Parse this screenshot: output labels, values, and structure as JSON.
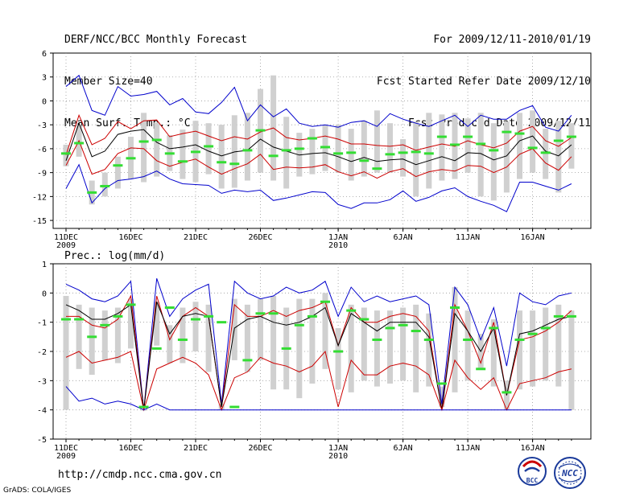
{
  "header": {
    "title": "DERF/NCC/BCC Monthly Forecast",
    "member_size": "Member Size=40",
    "variable": "Mean Surf. Temp.: °C",
    "forecast_period": "For 2009/12/11-2010/01/19",
    "started_refer": "Fcst Started Refer Date 2009/12/10",
    "produced": "Fcst Produced Date 2009/12/11"
  },
  "footer": {
    "url": "http://cmdp.ncc.cma.gov.cn",
    "credit": "GrADS: COLA/IGES"
  },
  "logos": {
    "bcc": "BCC",
    "ncc": "NCC"
  },
  "colors": {
    "envelope": "#0000cc",
    "spread": "#cc0000",
    "mean": "#000000",
    "box": "#d0d0d0",
    "marker": "#33dd33"
  },
  "x_ticks": [
    {
      "day": 0,
      "label": "11DEC",
      "sub": "2009"
    },
    {
      "day": 5,
      "label": "16DEC",
      "sub": ""
    },
    {
      "day": 10,
      "label": "21DEC",
      "sub": ""
    },
    {
      "day": 15,
      "label": "26DEC",
      "sub": ""
    },
    {
      "day": 21,
      "label": "1JAN",
      "sub": "2010"
    },
    {
      "day": 26,
      "label": "6JAN",
      "sub": ""
    },
    {
      "day": 31,
      "label": "11JAN",
      "sub": ""
    },
    {
      "day": 36,
      "label": "16JAN",
      "sub": ""
    }
  ],
  "chart_data": [
    {
      "type": "line",
      "title": "Mean Surf. Temp.: °C",
      "xlabel": "",
      "ylabel": "°C",
      "x_days": [
        0,
        1,
        2,
        3,
        4,
        5,
        6,
        7,
        8,
        9,
        10,
        11,
        12,
        13,
        14,
        15,
        16,
        17,
        18,
        19,
        20,
        21,
        22,
        23,
        24,
        25,
        26,
        27,
        28,
        29,
        30,
        31,
        32,
        33,
        34,
        35,
        36,
        37,
        38,
        39
      ],
      "ylim": [
        -16,
        6
      ],
      "yticks": [
        6,
        3,
        0,
        -3,
        -6,
        -9,
        -12,
        -15
      ],
      "grid": true,
      "series": [
        {
          "name": "max",
          "color": "#0000cc",
          "values": [
            1.8,
            3.2,
            -1.2,
            -1.8,
            1.8,
            0.6,
            0.8,
            1.2,
            -0.5,
            0.3,
            -1.4,
            -1.6,
            -0.2,
            1.7,
            -2.5,
            -0.5,
            -2.0,
            -1.0,
            -2.8,
            -3.2,
            -3.0,
            -3.3,
            -2.7,
            -2.5,
            -3.2,
            -1.6,
            -2.3,
            -2.8,
            -3.2,
            -2.5,
            -1.8,
            -3.2,
            -1.8,
            -2.3,
            -2.3,
            -1.2,
            -0.6,
            -3.3,
            -3.8,
            -1.8
          ]
        },
        {
          "name": "upper",
          "color": "#cc0000",
          "values": [
            -6.8,
            -1.8,
            -5.5,
            -4.7,
            -2.6,
            -3.5,
            -2.5,
            -2.4,
            -4.5,
            -4.1,
            -3.8,
            -4.4,
            -5.0,
            -4.5,
            -4.8,
            -3.9,
            -3.4,
            -4.6,
            -4.9,
            -4.7,
            -4.4,
            -4.8,
            -5.4,
            -5.4,
            -5.6,
            -5.7,
            -5.5,
            -6.2,
            -5.8,
            -5.4,
            -5.7,
            -5.0,
            -5.5,
            -5.9,
            -5.3,
            -3.8,
            -3.2,
            -5.0,
            -5.7,
            -4.6
          ]
        },
        {
          "name": "mean",
          "color": "#000000",
          "values": [
            -7.5,
            -2.8,
            -7.0,
            -6.3,
            -4.2,
            -3.8,
            -3.6,
            -5.2,
            -6.0,
            -5.8,
            -5.5,
            -6.3,
            -6.9,
            -6.4,
            -6.2,
            -4.8,
            -5.8,
            -6.3,
            -6.8,
            -6.6,
            -6.5,
            -7.0,
            -7.6,
            -7.1,
            -7.6,
            -7.4,
            -7.3,
            -8.0,
            -7.5,
            -7.0,
            -7.5,
            -6.5,
            -6.6,
            -7.4,
            -6.9,
            -5.0,
            -4.4,
            -6.3,
            -6.9,
            -5.5
          ]
        },
        {
          "name": "lower",
          "color": "#cc0000",
          "values": [
            -8.1,
            -5.0,
            -9.2,
            -8.6,
            -6.6,
            -5.9,
            -6.0,
            -7.5,
            -8.2,
            -7.7,
            -7.3,
            -8.3,
            -9.2,
            -8.5,
            -7.9,
            -6.7,
            -8.6,
            -8.3,
            -8.4,
            -8.3,
            -8.0,
            -8.9,
            -9.4,
            -8.9,
            -9.7,
            -8.9,
            -8.5,
            -9.5,
            -8.9,
            -8.6,
            -8.8,
            -8.1,
            -8.2,
            -9.0,
            -8.3,
            -6.7,
            -6.0,
            -7.8,
            -8.7,
            -7.0
          ]
        },
        {
          "name": "min",
          "color": "#0000cc",
          "values": [
            -11.0,
            -8.0,
            -12.8,
            -11.0,
            -10.0,
            -9.8,
            -9.5,
            -8.8,
            -9.8,
            -10.4,
            -10.5,
            -10.6,
            -11.6,
            -11.2,
            -11.4,
            -11.2,
            -12.5,
            -12.2,
            -11.8,
            -11.4,
            -11.5,
            -13.0,
            -13.5,
            -12.8,
            -12.8,
            -12.4,
            -11.3,
            -12.6,
            -12.1,
            -11.3,
            -10.9,
            -12.0,
            -12.6,
            -13.1,
            -13.9,
            -10.2,
            -10.2,
            -10.7,
            -11.2,
            -10.4
          ]
        }
      ],
      "box_spread": {
        "low": [
          -8.2,
          -7.0,
          -13.0,
          -12.0,
          -11.0,
          -9.8,
          -10.2,
          -9.5,
          -8.8,
          -9.8,
          -10.2,
          -9.2,
          -11.0,
          -10.9,
          -10.0,
          -9.0,
          -10.0,
          -11.0,
          -9.5,
          -9.2,
          -8.8,
          -9.0,
          -10.0,
          -9.5,
          -9.0,
          -9.0,
          -9.5,
          -12.0,
          -11.0,
          -10.0,
          -9.8,
          -9.0,
          -12.0,
          -12.5,
          -11.5,
          -9.8,
          -9.0,
          -9.8,
          -11.5,
          -8.5
        ],
        "high": [
          -5.5,
          -3.0,
          -10.0,
          -9.0,
          -7.0,
          -4.5,
          -1.5,
          -2.7,
          -4.3,
          -3.6,
          -2.5,
          -2.8,
          -3.0,
          -1.8,
          -1.5,
          1.5,
          3.2,
          -2.0,
          -4.0,
          -3.5,
          -3.0,
          -3.0,
          -3.5,
          -2.5,
          -1.2,
          -2.8,
          -4.8,
          -2.6,
          -1.5,
          -1.7,
          -1.5,
          -2.2,
          -1.5,
          -2.8,
          -2.6,
          -1.5,
          -1.2,
          -3.5,
          -2.5,
          -2.8
        ]
      },
      "observed": [
        -6.6,
        -5.3,
        -11.5,
        -10.7,
        -8.1,
        -7.2,
        -5.1,
        -4.9,
        -6.6,
        -7.6,
        -6.4,
        -5.7,
        -7.7,
        -7.9,
        -6.2,
        -3.7,
        -6.9,
        -6.2,
        -6.0,
        -4.7,
        -5.8,
        -6.6,
        -6.5,
        -7.5,
        -8.5,
        -6.7,
        -6.5,
        -6.4,
        -6.6,
        -4.5,
        -5.5,
        -4.5,
        -5.4,
        -6.2,
        -3.9,
        -4.1,
        -5.9,
        -6.5,
        -5.0,
        -4.5
      ]
    },
    {
      "type": "line",
      "title": "Prec.: log(mm/d)",
      "xlabel": "",
      "ylabel": "log(mm/d)",
      "x_days": [
        0,
        1,
        2,
        3,
        4,
        5,
        6,
        7,
        8,
        9,
        10,
        11,
        12,
        13,
        14,
        15,
        16,
        17,
        18,
        19,
        20,
        21,
        22,
        23,
        24,
        25,
        26,
        27,
        28,
        29,
        30,
        31,
        32,
        33,
        34,
        35,
        36,
        37,
        38,
        39
      ],
      "ylim": [
        -5,
        1
      ],
      "yticks": [
        1,
        0,
        -1,
        -2,
        -3,
        -4,
        -5
      ],
      "grid": true,
      "series": [
        {
          "name": "max",
          "color": "#0000cc",
          "values": [
            0.3,
            0.1,
            -0.2,
            -0.3,
            -0.1,
            0.4,
            -4.0,
            0.5,
            -0.8,
            -0.2,
            0.1,
            0.3,
            -3.8,
            0.4,
            0.0,
            -0.2,
            -0.1,
            0.2,
            0.0,
            0.1,
            0.4,
            -0.8,
            0.2,
            -0.3,
            -0.1,
            -0.3,
            -0.2,
            -0.1,
            -0.4,
            -3.8,
            0.2,
            -0.4,
            -1.6,
            -0.5,
            -2.5,
            0.0,
            -0.3,
            -0.4,
            -0.1,
            0.0
          ]
        },
        {
          "name": "upper",
          "color": "#cc0000",
          "values": [
            -0.8,
            -0.8,
            -1.1,
            -1.2,
            -0.9,
            -0.1,
            -4.0,
            -0.1,
            -1.6,
            -0.8,
            -0.5,
            -0.8,
            -3.9,
            -0.4,
            -0.8,
            -0.8,
            -0.6,
            -0.8,
            -0.6,
            -0.5,
            -0.3,
            -1.8,
            -0.5,
            -1.0,
            -1.0,
            -0.8,
            -0.7,
            -0.8,
            -1.3,
            -4.0,
            -0.4,
            -1.3,
            -2.4,
            -1.0,
            -3.5,
            -1.6,
            -1.5,
            -1.3,
            -1.0,
            -0.6
          ]
        },
        {
          "name": "mean",
          "color": "#000000",
          "values": [
            -0.4,
            -0.6,
            -0.9,
            -0.9,
            -0.7,
            -0.4,
            -4.0,
            -0.3,
            -1.4,
            -0.8,
            -0.7,
            -0.8,
            -3.9,
            -1.2,
            -0.9,
            -0.8,
            -1.0,
            -1.1,
            -1.0,
            -0.8,
            -0.5,
            -1.8,
            -0.7,
            -1.0,
            -1.3,
            -1.0,
            -1.0,
            -1.0,
            -1.5,
            -4.0,
            -0.7,
            -1.3,
            -2.0,
            -1.2,
            -3.5,
            -1.4,
            -1.3,
            -1.1,
            -0.9,
            -0.8
          ]
        },
        {
          "name": "lower",
          "color": "#cc0000",
          "values": [
            -2.2,
            -2.0,
            -2.4,
            -2.3,
            -2.2,
            -2.0,
            -4.0,
            -2.6,
            -2.4,
            -2.2,
            -2.4,
            -2.8,
            -4.0,
            -2.9,
            -2.7,
            -2.2,
            -2.4,
            -2.5,
            -2.7,
            -2.5,
            -2.0,
            -3.9,
            -2.3,
            -2.8,
            -2.8,
            -2.5,
            -2.4,
            -2.5,
            -2.8,
            -4.0,
            -2.3,
            -2.9,
            -3.3,
            -2.9,
            -4.0,
            -3.1,
            -3.0,
            -2.9,
            -2.7,
            -2.6
          ]
        },
        {
          "name": "min",
          "color": "#0000cc",
          "values": [
            -3.2,
            -3.7,
            -3.6,
            -3.8,
            -3.7,
            -3.8,
            -4.0,
            -3.8,
            -4.0,
            -4.0,
            -4.0,
            -4.0,
            -4.0,
            -4.0,
            -4.0,
            -4.0,
            -4.0,
            -4.0,
            -4.0,
            -4.0,
            -4.0,
            -4.0,
            -4.0,
            -4.0,
            -4.0,
            -4.0,
            -4.0,
            -4.0,
            -4.0,
            -4.0,
            -4.0,
            -4.0,
            -4.0,
            -4.0,
            -4.0,
            -4.0,
            -4.0,
            -4.0,
            -4.0,
            -4.0
          ]
        }
      ],
      "box_spread": {
        "low": [
          -4.0,
          -2.6,
          -2.8,
          -2.3,
          -2.4,
          -1.9,
          -4.0,
          -1.8,
          -2.4,
          -2.4,
          -2.0,
          -2.7,
          -4.0,
          -2.3,
          -2.7,
          -2.3,
          -3.3,
          -3.3,
          -3.6,
          -3.1,
          -2.6,
          -3.3,
          -3.4,
          -3.0,
          -3.2,
          -3.1,
          -3.0,
          -3.4,
          -3.2,
          -3.9,
          -3.4,
          -3.0,
          -2.6,
          -3.2,
          -4.0,
          -3.3,
          -3.2,
          -3.0,
          -3.2,
          -4.0
        ],
        "high": [
          -0.1,
          -0.4,
          -0.5,
          -0.6,
          -0.5,
          -0.2,
          -4.0,
          -0.3,
          -1.1,
          -0.5,
          -0.3,
          -0.4,
          -3.8,
          -0.2,
          -0.4,
          -0.2,
          -0.1,
          -0.5,
          -0.2,
          -0.2,
          0.0,
          -1.2,
          -0.4,
          -0.5,
          -0.6,
          -0.6,
          -0.5,
          -0.4,
          -0.7,
          -3.2,
          0.2,
          -0.6,
          -1.4,
          -0.9,
          -3.0,
          -0.6,
          -0.6,
          -0.5,
          -0.4,
          -0.6
        ]
      },
      "observed": [
        -0.9,
        -0.9,
        -1.5,
        -1.1,
        -0.8,
        -0.4,
        -3.9,
        -1.9,
        -0.5,
        -1.6,
        -0.9,
        -0.8,
        -1.0,
        -3.9,
        -2.3,
        -0.7,
        -0.7,
        -1.9,
        -1.1,
        -0.8,
        -0.3,
        -2.0,
        -0.6,
        -0.9,
        -1.6,
        -1.2,
        -1.1,
        -1.3,
        -1.6,
        -3.1,
        -0.5,
        -1.6,
        -2.6,
        -1.2,
        -3.4,
        -1.6,
        -1.4,
        -1.2,
        -0.8,
        -0.8
      ]
    }
  ]
}
